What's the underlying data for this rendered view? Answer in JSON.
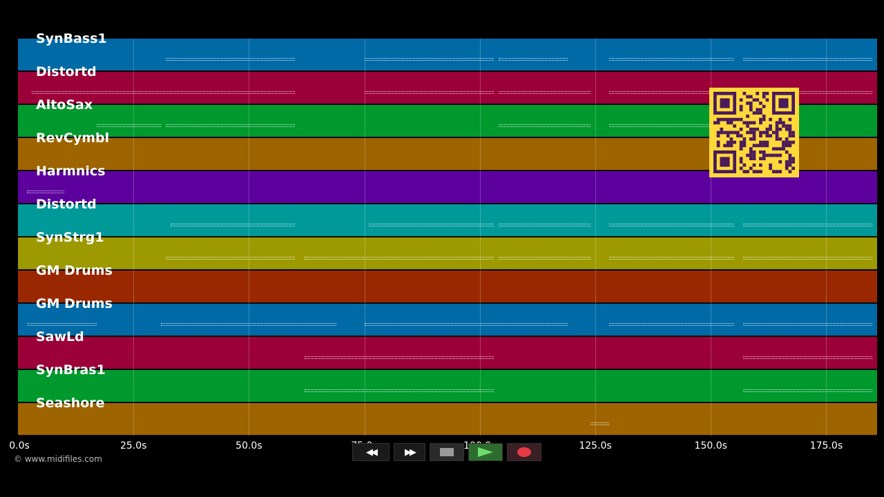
{
  "tracks": [
    {
      "name": "SynBass1",
      "color": "#006aa6"
    },
    {
      "name": "Distortd",
      "color": "#9c0038"
    },
    {
      "name": "AltoSax",
      "color": "#00992e"
    },
    {
      "name": "RevCymbl",
      "color": "#9e6400"
    },
    {
      "name": "Harmnics",
      "color": "#5c009e"
    },
    {
      "name": "Distortd",
      "color": "#009999"
    },
    {
      "name": "SynStrg1",
      "color": "#9c9a00"
    },
    {
      "name": "GM Drums",
      "color": "#992800"
    },
    {
      "name": "GM Drums",
      "color": "#006aa6"
    },
    {
      "name": "SawLd",
      "color": "#9c0038"
    },
    {
      "name": "SynBras1",
      "color": "#00992e"
    },
    {
      "name": "Seashore",
      "color": "#9e6400"
    }
  ],
  "timeline": {
    "ticks": [
      "0.0s",
      "25.0s",
      "50.0s",
      "75.0s",
      "100.0s",
      "125.0s",
      "150.0s",
      "175.0s"
    ],
    "max_seconds": 186
  },
  "copyright": "© www.midifiles.com",
  "transport": {
    "rewind_icon": "rewind-icon",
    "forward_icon": "fast-forward-icon",
    "stop_icon": "stop-icon",
    "play_icon": "play-icon",
    "record_icon": "record-icon"
  },
  "notes": [
    {
      "track": 0,
      "segments": [
        [
          32,
          60
        ],
        [
          75,
          103
        ],
        [
          104,
          119
        ],
        [
          128,
          155
        ],
        [
          157,
          185
        ]
      ]
    },
    {
      "track": 1,
      "segments": [
        [
          3,
          60
        ],
        [
          75,
          103
        ],
        [
          104,
          124
        ],
        [
          128,
          155
        ],
        [
          157,
          185
        ]
      ]
    },
    {
      "track": 2,
      "segments": [
        [
          17,
          31
        ],
        [
          32,
          60
        ],
        [
          104,
          124
        ],
        [
          128,
          155
        ]
      ]
    },
    {
      "track": 4,
      "segments": [
        [
          2,
          10
        ]
      ]
    },
    {
      "track": 5,
      "segments": [
        [
          33,
          60
        ],
        [
          76,
          103
        ],
        [
          104,
          124
        ],
        [
          128,
          155
        ],
        [
          157,
          185
        ]
      ]
    },
    {
      "track": 6,
      "segments": [
        [
          32,
          60
        ],
        [
          62,
          103
        ],
        [
          104,
          124
        ],
        [
          128,
          155
        ],
        [
          157,
          185
        ]
      ]
    },
    {
      "track": 8,
      "segments": [
        [
          2,
          17
        ],
        [
          31,
          69
        ],
        [
          75,
          119
        ],
        [
          128,
          155
        ],
        [
          157,
          185
        ]
      ]
    },
    {
      "track": 9,
      "segments": [
        [
          62,
          103
        ],
        [
          157,
          185
        ]
      ]
    },
    {
      "track": 10,
      "segments": [
        [
          62,
          103
        ],
        [
          157,
          185
        ]
      ]
    },
    {
      "track": 11,
      "segments": [
        [
          124,
          128
        ]
      ]
    }
  ]
}
